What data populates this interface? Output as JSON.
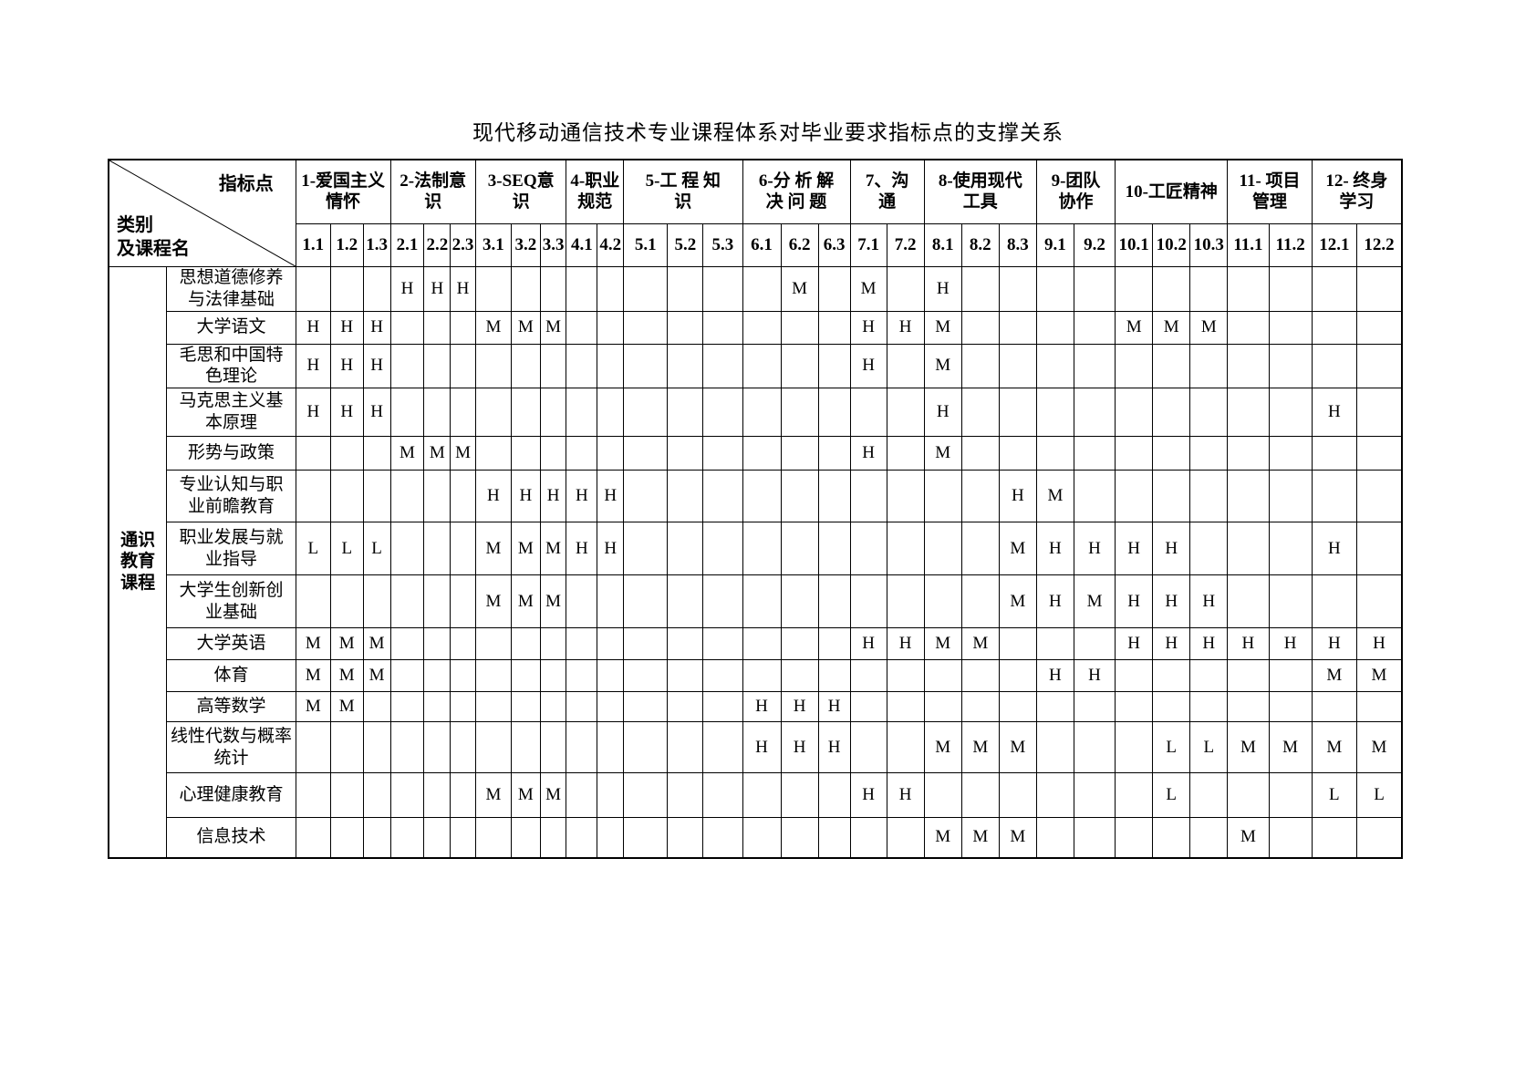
{
  "title": "现代移动通信技术专业课程体系对毕业要求指标点的支撑关系",
  "corner": {
    "top_right": "指标点",
    "bottom_left_lines": [
      "类别",
      "及课程名"
    ]
  },
  "category": {
    "lines": [
      "通识",
      "教育",
      "课程"
    ]
  },
  "groups": [
    {
      "label_lines": [
        "1-爱国主义",
        "情怀"
      ],
      "span": 3
    },
    {
      "label_lines": [
        "2-法制意",
        "识"
      ],
      "span": 3
    },
    {
      "label_lines": [
        "3-SEQ意",
        "识"
      ],
      "span": 3
    },
    {
      "label_lines": [
        "4-职业",
        "规范"
      ],
      "span": 2
    },
    {
      "label_lines": [
        "5-工 程 知",
        "识"
      ],
      "span": 3
    },
    {
      "label_lines": [
        "6-分 析 解",
        "决 问 题"
      ],
      "span": 3
    },
    {
      "label_lines": [
        "7、沟",
        "通"
      ],
      "span": 2
    },
    {
      "label_lines": [
        "8-使用现代",
        "工具"
      ],
      "span": 3
    },
    {
      "label_lines": [
        "9-团队",
        "协作"
      ],
      "span": 2
    },
    {
      "label_lines": [
        "10-工匠精神"
      ],
      "span": 3
    },
    {
      "label_lines": [
        "11- 项目",
        "管理"
      ],
      "span": 2
    },
    {
      "label_lines": [
        "12- 终身",
        "学习"
      ],
      "span": 2
    }
  ],
  "subcols": [
    "1.1",
    "1.2",
    "1.3",
    "2.1",
    "2.2",
    "2.3",
    "3.1",
    "3.2",
    "3.3",
    "4.1",
    "4.2",
    "5.1",
    "5.2",
    "5.3",
    "6.1",
    "6.2",
    "6.3",
    "7.1",
    "7.2",
    "8.1",
    "8.2",
    "8.3",
    "9.1",
    "9.2",
    "10.1",
    "10.2",
    "10.3",
    "11.1",
    "11.2",
    "12.1",
    "12.2"
  ],
  "courses": [
    {
      "name_lines": [
        "思想道德修养",
        "与法律基础"
      ],
      "marks": [
        "",
        "",
        "",
        "H",
        "H",
        "H",
        "",
        "",
        "",
        "",
        "",
        "",
        "",
        "",
        "",
        "M",
        "",
        "M",
        "",
        "H",
        "",
        "",
        "",
        "",
        "",
        "",
        "",
        "",
        "",
        "",
        ""
      ]
    },
    {
      "name_lines": [
        "大学语文"
      ],
      "marks": [
        "H",
        "H",
        "H",
        "",
        "",
        "",
        "M",
        "M",
        "M",
        "",
        "",
        "",
        "",
        "",
        "",
        "",
        "",
        "H",
        "H",
        "M",
        "",
        "",
        "",
        "",
        "M",
        "M",
        "M",
        "",
        "",
        "",
        ""
      ]
    },
    {
      "name_lines": [
        "毛思和中国特",
        "色理论"
      ],
      "marks": [
        "H",
        "H",
        "H",
        "",
        "",
        "",
        "",
        "",
        "",
        "",
        "",
        "",
        "",
        "",
        "",
        "",
        "",
        "H",
        "",
        "M",
        "",
        "",
        "",
        "",
        "",
        "",
        "",
        "",
        "",
        "",
        ""
      ]
    },
    {
      "name_lines": [
        "马克思主义基",
        "本原理"
      ],
      "marks": [
        "H",
        "H",
        "H",
        "",
        "",
        "",
        "",
        "",
        "",
        "",
        "",
        "",
        "",
        "",
        "",
        "",
        "",
        "",
        "",
        "H",
        "",
        "",
        "",
        "",
        "",
        "",
        "",
        "",
        "",
        "H",
        ""
      ]
    },
    {
      "name_lines": [
        "形势与政策"
      ],
      "marks": [
        "",
        "",
        "",
        "M",
        "M",
        "M",
        "",
        "",
        "",
        "",
        "",
        "",
        "",
        "",
        "",
        "",
        "",
        "H",
        "",
        "M",
        "",
        "",
        "",
        "",
        "",
        "",
        "",
        "",
        "",
        "",
        ""
      ]
    },
    {
      "name_lines": [
        "专业认知与职",
        "业前瞻教育"
      ],
      "marks": [
        "",
        "",
        "",
        "",
        "",
        "",
        "H",
        "H",
        "H",
        "H",
        "H",
        "",
        "",
        "",
        "",
        "",
        "",
        "",
        "",
        "",
        "",
        "H",
        "M",
        "",
        "",
        "",
        "",
        "",
        "",
        "",
        ""
      ]
    },
    {
      "name_lines": [
        "职业发展与就",
        "业指导"
      ],
      "marks": [
        "L",
        "L",
        "L",
        "",
        "",
        "",
        "M",
        "M",
        "M",
        "H",
        "H",
        "",
        "",
        "",
        "",
        "",
        "",
        "",
        "",
        "",
        "",
        "M",
        "H",
        "H",
        "H",
        "H",
        "",
        "",
        "",
        "H",
        ""
      ]
    },
    {
      "name_lines": [
        "大学生创新创",
        "业基础"
      ],
      "marks": [
        "",
        "",
        "",
        "",
        "",
        "",
        "M",
        "M",
        "M",
        "",
        "",
        "",
        "",
        "",
        "",
        "",
        "",
        "",
        "",
        "",
        "",
        "M",
        "H",
        "M",
        "H",
        "H",
        "H",
        "",
        "",
        "",
        ""
      ]
    },
    {
      "name_lines": [
        "大学英语"
      ],
      "marks": [
        "M",
        "M",
        "M",
        "",
        "",
        "",
        "",
        "",
        "",
        "",
        "",
        "",
        "",
        "",
        "",
        "",
        "",
        "H",
        "H",
        "M",
        "M",
        "",
        "",
        "",
        "H",
        "H",
        "H",
        "H",
        "H",
        "H",
        "H"
      ]
    },
    {
      "name_lines": [
        "体育"
      ],
      "marks": [
        "M",
        "M",
        "M",
        "",
        "",
        "",
        "",
        "",
        "",
        "",
        "",
        "",
        "",
        "",
        "",
        "",
        "",
        "",
        "",
        "",
        "",
        "",
        "H",
        "H",
        "",
        "",
        "",
        "",
        "",
        "M",
        "M"
      ]
    },
    {
      "name_lines": [
        "高等数学"
      ],
      "marks": [
        "M",
        "M",
        "",
        "",
        "",
        "",
        "",
        "",
        "",
        "",
        "",
        "",
        "",
        "",
        "H",
        "H",
        "H",
        "",
        "",
        "",
        "",
        "",
        "",
        "",
        "",
        "",
        "",
        "",
        "",
        "",
        ""
      ]
    },
    {
      "name_lines": [
        "线性代数与概率",
        "统计"
      ],
      "marks": [
        "",
        "",
        "",
        "",
        "",
        "",
        "",
        "",
        "",
        "",
        "",
        "",
        "",
        "",
        "H",
        "H",
        "H",
        "",
        "",
        "M",
        "M",
        "M",
        "",
        "",
        "",
        "L",
        "L",
        "M",
        "M",
        "M",
        "M"
      ]
    },
    {
      "name_lines": [
        "心理健康教育"
      ],
      "marks": [
        "",
        "",
        "",
        "",
        "",
        "",
        "M",
        "M",
        "M",
        "",
        "",
        "",
        "",
        "",
        "",
        "",
        "",
        "H",
        "H",
        "",
        "",
        "",
        "",
        "",
        "",
        "L",
        "",
        "",
        "",
        "L",
        "L"
      ]
    },
    {
      "name_lines": [
        "信息技术"
      ],
      "marks": [
        "",
        "",
        "",
        "",
        "",
        "",
        "",
        "",
        "",
        "",
        "",
        "",
        "",
        "",
        "",
        "",
        "",
        "",
        "",
        "M",
        "M",
        "M",
        "",
        "",
        "",
        "",
        "",
        "M",
        "",
        "",
        ""
      ]
    }
  ]
}
